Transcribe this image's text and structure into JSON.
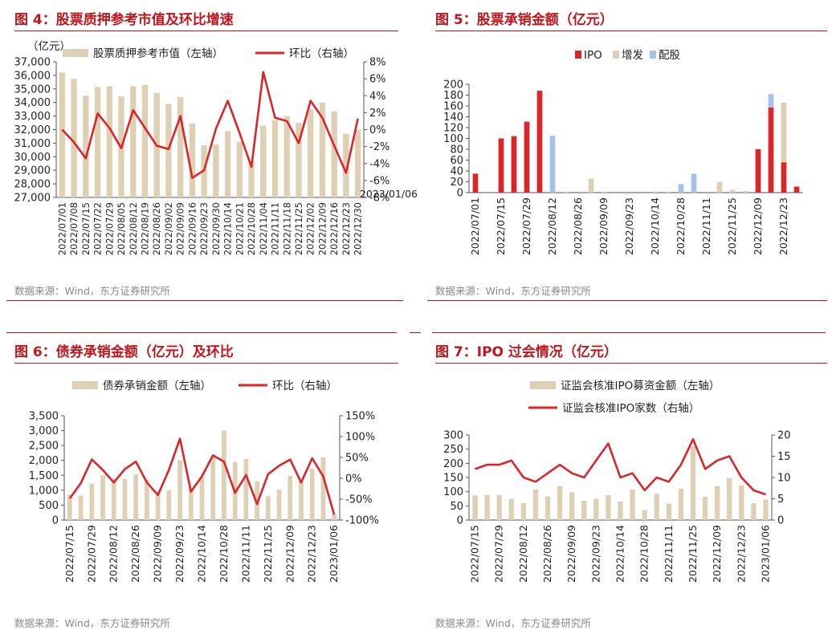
{
  "source_text": "数据来源：Wind，东方证券研究所",
  "colors": {
    "red": "#d9262a",
    "beige": "#ddd0b5",
    "blue": "#a3c3ec",
    "title": "#c0161b"
  },
  "chart_data": [
    {
      "id": "fig4",
      "type": "bar",
      "title": "图 4：股票质押参考市值及环比增速",
      "unit_label": "（亿元）",
      "legend": {
        "bar": "股票质押参考市值（左轴）",
        "line": "环比（右轴）"
      },
      "categories": [
        "2022/07/01",
        "2022/07/08",
        "2022/07/15",
        "2022/07/22",
        "2022/07/29",
        "2022/08/05",
        "2022/08/12",
        "2022/08/19",
        "2022/08/26",
        "2022/09/02",
        "2022/09/09",
        "2022/09/16",
        "2022/09/23",
        "2022/09/30",
        "2022/10/14",
        "2022/10/21",
        "2022/10/28",
        "2022/11/04",
        "2022/11/11",
        "2022/11/18",
        "2022/11/25",
        "2022/12/02",
        "2022/12/09",
        "2022/12/16",
        "2022/12/23",
        "2022/12/30"
      ],
      "left_ticks": [
        "27,000",
        "28,000",
        "29,000",
        "30,000",
        "31,000",
        "32,000",
        "33,000",
        "34,000",
        "35,000",
        "36,000",
        "37,000"
      ],
      "right_ticks": [
        "-8%",
        "-6%",
        "-4%",
        "-2%",
        "0%",
        "2%",
        "4%",
        "6%",
        "8%"
      ],
      "ylim_left": [
        27000,
        37000
      ],
      "ylim_right": [
        -8,
        8
      ],
      "bar_values": [
        36200,
        35750,
        34500,
        35150,
        35200,
        34450,
        35200,
        35300,
        34700,
        33900,
        34400,
        32450,
        30850,
        30900,
        31900,
        31100,
        29700,
        32300,
        32700,
        33000,
        32500,
        33500,
        34000,
        33350,
        31700,
        32000
      ],
      "line_values": [
        0.0,
        -1.5,
        -3.4,
        1.9,
        0.2,
        -2.2,
        2.3,
        0.2,
        -1.9,
        -2.3,
        1.6,
        -5.7,
        -4.8,
        0.1,
        3.4,
        -0.4,
        -4.4,
        6.8,
        1.4,
        1.0,
        -1.6,
        3.4,
        1.4,
        -1.9,
        -5.1,
        1.3
      ]
    },
    {
      "id": "fig5",
      "type": "bar",
      "title": "图 5：股票承销金额（亿元）",
      "legend": {
        "ipo": "IPO",
        "zf": "增发",
        "pg": "配股"
      },
      "tick_labels": [
        "2022/07/01",
        "2022/07/15",
        "2022/07/29",
        "2022/08/12",
        "2022/08/26",
        "2022/09/09",
        "2022/09/23",
        "2022/10/14",
        "2022/10/28",
        "2022/11/11",
        "2022/11/25",
        "2022/12/09",
        "2022/12/23",
        "2023/01/06"
      ],
      "left_ticks": [
        "0",
        "20",
        "40",
        "60",
        "80",
        "100",
        "120",
        "140",
        "160",
        "180",
        "200"
      ],
      "ylim": [
        0,
        200
      ],
      "series": [
        {
          "name": "IPO",
          "values": [
            35,
            0,
            100,
            104,
            131,
            188,
            0,
            0,
            0,
            0,
            0,
            0,
            0,
            0,
            0,
            0,
            0,
            0,
            0,
            0,
            0,
            0,
            80,
            157,
            56,
            11
          ]
        },
        {
          "name": "增发",
          "values": [
            0,
            0,
            0,
            2,
            0,
            0,
            0,
            2,
            0,
            26,
            2,
            0,
            0,
            0,
            2,
            2,
            0,
            0,
            0,
            20,
            5,
            3,
            0,
            0,
            110,
            0
          ]
        },
        {
          "name": "配股",
          "values": [
            0,
            0,
            0,
            0,
            0,
            0,
            105,
            0,
            0,
            0,
            0,
            0,
            0,
            0,
            0,
            0,
            16,
            35,
            0,
            0,
            0,
            0,
            0,
            25,
            0,
            0
          ]
        }
      ]
    },
    {
      "id": "fig6",
      "type": "bar",
      "title": "图 6：债券承销金额（亿元）及环比",
      "legend": {
        "bar": "债券承销金额（左轴）",
        "line": "环比（右轴）"
      },
      "tick_labels": [
        "2022/07/15",
        "2022/07/29",
        "2022/08/12",
        "2022/08/26",
        "2022/09/09",
        "2022/09/23",
        "2022/10/14",
        "2022/10/28",
        "2022/11/11",
        "2022/11/25",
        "2022/12/09",
        "2022/12/23",
        "2023/01/06"
      ],
      "left_ticks": [
        "0",
        "500",
        "1,000",
        "1,500",
        "2,000",
        "2,500",
        "3,000",
        "3,500"
      ],
      "right_ticks": [
        "-100%",
        "-50%",
        "0%",
        "50%",
        "100%",
        "150%"
      ],
      "ylim_left": [
        0,
        3500
      ],
      "ylim_right": [
        -100,
        150
      ],
      "bar_values": [
        850,
        820,
        1220,
        1500,
        1380,
        1380,
        1530,
        1370,
        950,
        1000,
        2000,
        1100,
        1450,
        2100,
        3000,
        1950,
        2050,
        1300,
        800,
        1020,
        1480,
        1330,
        1720,
        2100,
        200
      ],
      "line_values": [
        -48,
        -12,
        45,
        20,
        -10,
        22,
        40,
        -10,
        -40,
        20,
        95,
        -32,
        5,
        55,
        40,
        -35,
        8,
        -62,
        10,
        30,
        45,
        -10,
        48,
        5,
        -87
      ]
    },
    {
      "id": "fig7",
      "type": "bar",
      "title": "图 7：IPO 过会情况（亿元）",
      "legend": {
        "bar": "证监会核准IPO募资金额（左轴）",
        "line": "证监会核准IPO家数（右轴）"
      },
      "tick_labels": [
        "2022/07/15",
        "2022/07/29",
        "2022/08/12",
        "2022/08/26",
        "2022/09/09",
        "2022/09/23",
        "2022/10/14",
        "2022/10/28",
        "2022/11/11",
        "2022/11/25",
        "2022/12/09",
        "2022/12/23",
        "2023/01/06"
      ],
      "left_ticks": [
        "0",
        "50",
        "100",
        "150",
        "200",
        "250",
        "300"
      ],
      "right_ticks": [
        "0",
        "5",
        "10",
        "15",
        "20"
      ],
      "ylim_left": [
        0,
        300
      ],
      "ylim_right": [
        0,
        20
      ],
      "bar_values": [
        87,
        88,
        88,
        75,
        60,
        108,
        83,
        120,
        98,
        68,
        75,
        88,
        65,
        108,
        35,
        93,
        58,
        110,
        260,
        82,
        120,
        148,
        122,
        60,
        72
      ],
      "line_values": [
        12,
        13,
        13,
        14,
        10,
        9,
        11,
        13,
        11,
        10,
        14,
        18,
        10,
        11,
        7,
        10,
        9,
        13,
        19,
        12,
        14,
        15,
        10,
        7,
        6
      ]
    }
  ]
}
